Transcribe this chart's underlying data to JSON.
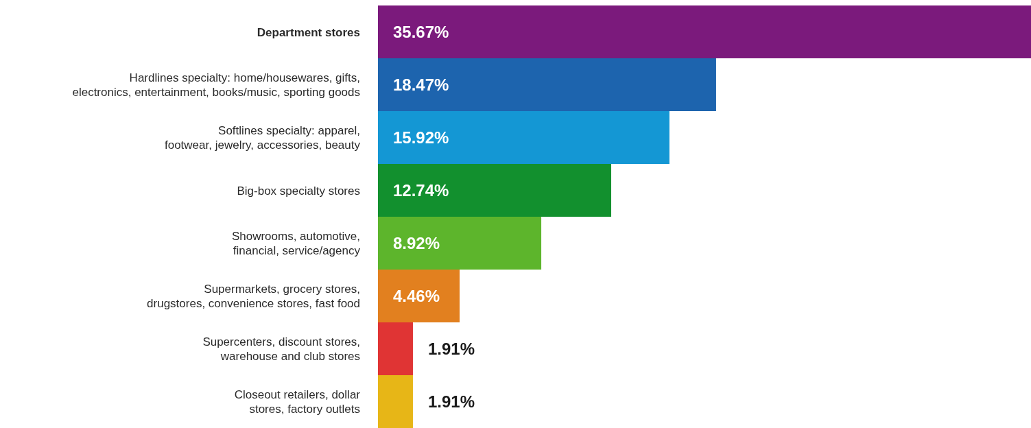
{
  "chart_data": {
    "type": "bar",
    "orientation": "horizontal",
    "categories": [
      "Department stores",
      "Hardlines specialty: home/housewares, gifts, electronics, entertainment, books/music, sporting goods",
      "Softlines specialty: apparel, footwear, jewelry, accessories, beauty",
      "Big-box specialty stores",
      "Showrooms, automotive, financial, service/agency",
      "Supermarkets, grocery stores, drugstores, convenience stores, fast food",
      "Supercenters, discount stores, warehouse and club stores",
      "Closeout retailers, dollar stores, factory outlets"
    ],
    "values": [
      35.67,
      18.47,
      15.92,
      12.74,
      8.92,
      4.46,
      1.91,
      1.91
    ],
    "colors": [
      "#7b1a7c",
      "#1d64ae",
      "#1497d4",
      "#12902e",
      "#5db52c",
      "#e2801f",
      "#e03434",
      "#e7b617"
    ],
    "value_labels": [
      "35.67%",
      "18.47%",
      "15.92%",
      "12.74%",
      "8.92%",
      "4.46%",
      "1.91%",
      "1.91%"
    ]
  }
}
